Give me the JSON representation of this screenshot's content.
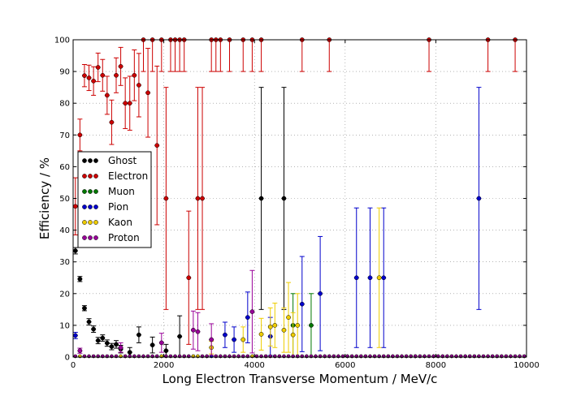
{
  "chart_data": {
    "type": "scatter",
    "title": "",
    "xlabel": "Long Electron Transverse Momentum / MeV/c",
    "ylabel": "Efficiency / %",
    "xlim": [
      0,
      10000
    ],
    "ylim": [
      0,
      100
    ],
    "xticks": [
      "0",
      "2000",
      "4000",
      "6000",
      "8000",
      "10000"
    ],
    "yticks": [
      "0",
      "10",
      "20",
      "30",
      "40",
      "50",
      "60",
      "70",
      "80",
      "90",
      "100"
    ],
    "grid": true,
    "legend_position": "left",
    "series": [
      {
        "name": "Ghost",
        "color": "#000000",
        "points": [
          {
            "x": 50,
            "y": 33.5,
            "err": 1.0
          },
          {
            "x": 150,
            "y": 24.6,
            "err": 0.8
          },
          {
            "x": 250,
            "y": 15.4,
            "err": 0.8
          },
          {
            "x": 350,
            "y": 11.1,
            "err": 1.0
          },
          {
            "x": 450,
            "y": 8.8,
            "err": 1.0
          },
          {
            "x": 550,
            "y": 5.2,
            "err": 1.0
          },
          {
            "x": 650,
            "y": 6.0,
            "err": 1.0
          },
          {
            "x": 750,
            "y": 4.4,
            "err": 1.0
          },
          {
            "x": 850,
            "y": 3.3,
            "err": 1.0
          },
          {
            "x": 950,
            "y": 4.0,
            "err": 1.2
          },
          {
            "x": 1050,
            "y": 2.5,
            "err": 1.2
          },
          {
            "x": 1250,
            "y": 1.5,
            "err": 1.5
          },
          {
            "x": 1450,
            "y": 7.0,
            "err": 2.5
          },
          {
            "x": 1750,
            "y": 3.8,
            "err": 2.5
          },
          {
            "x": 2050,
            "y": 2.0,
            "err": 2.0
          },
          {
            "x": 2350,
            "y": 6.5,
            "err": 6.5
          },
          {
            "x": 4150,
            "y": 50,
            "err": 35
          },
          {
            "x": 4650,
            "y": 50,
            "err": 35
          }
        ]
      },
      {
        "name": "Electron",
        "color": "#cc0000",
        "points": [
          {
            "x": 50,
            "y": 47.5,
            "err": 9
          },
          {
            "x": 150,
            "y": 70,
            "err": 5
          },
          {
            "x": 250,
            "y": 88.7,
            "err": 3.5
          },
          {
            "x": 350,
            "y": 88.0,
            "err": 4
          },
          {
            "x": 450,
            "y": 87.0,
            "err": 4.5
          },
          {
            "x": 550,
            "y": 91.3,
            "err": 4.5
          },
          {
            "x": 650,
            "y": 88.8,
            "err": 5
          },
          {
            "x": 750,
            "y": 82.5,
            "err": 6
          },
          {
            "x": 850,
            "y": 74.0,
            "err": 7
          },
          {
            "x": 950,
            "y": 88.8,
            "err": 5.5
          },
          {
            "x": 1050,
            "y": 91.6,
            "err": 6
          },
          {
            "x": 1150,
            "y": 80.0,
            "err": 8
          },
          {
            "x": 1250,
            "y": 80.0,
            "err": 8.5
          },
          {
            "x": 1350,
            "y": 88.8,
            "err": 8
          },
          {
            "x": 1450,
            "y": 85.7,
            "err": 10
          },
          {
            "x": 1550,
            "y": 100,
            "err": 10
          },
          {
            "x": 1650,
            "y": 83.3,
            "err": 14
          },
          {
            "x": 1750,
            "y": 100,
            "err": 10
          },
          {
            "x": 1850,
            "y": 66.7,
            "err": 25
          },
          {
            "x": 1950,
            "y": 100,
            "err": 10
          },
          {
            "x": 2050,
            "y": 50,
            "err": 35
          },
          {
            "x": 2150,
            "y": 100,
            "err": 10
          },
          {
            "x": 2250,
            "y": 100,
            "err": 10
          },
          {
            "x": 2350,
            "y": 100,
            "err": 10
          },
          {
            "x": 2450,
            "y": 100,
            "err": 10
          },
          {
            "x": 2550,
            "y": 25,
            "err": 21
          },
          {
            "x": 2750,
            "y": 50,
            "err": 35
          },
          {
            "x": 2850,
            "y": 50,
            "err": 35
          },
          {
            "x": 3050,
            "y": 100,
            "err": 10
          },
          {
            "x": 3150,
            "y": 100,
            "err": 10
          },
          {
            "x": 3250,
            "y": 100,
            "err": 10
          },
          {
            "x": 3450,
            "y": 100,
            "err": 10
          },
          {
            "x": 3750,
            "y": 100,
            "err": 10
          },
          {
            "x": 3950,
            "y": 100,
            "err": 10
          },
          {
            "x": 4150,
            "y": 100,
            "err": 10
          },
          {
            "x": 5050,
            "y": 100,
            "err": 10
          },
          {
            "x": 5650,
            "y": 100,
            "err": 10
          },
          {
            "x": 7850,
            "y": 100,
            "err": 10
          },
          {
            "x": 9150,
            "y": 100,
            "err": 10
          },
          {
            "x": 9750,
            "y": 100,
            "err": 10
          }
        ]
      },
      {
        "name": "Muon",
        "color": "#007700",
        "points": [
          {
            "x": 4850,
            "y": 10,
            "err": 10
          },
          {
            "x": 5250,
            "y": 10,
            "err": 10
          }
        ]
      },
      {
        "name": "Pion",
        "color": "#0000cc",
        "points": [
          {
            "x": 50,
            "y": 6.8,
            "err": 1.0
          },
          {
            "x": 3350,
            "y": 7.0,
            "err": 4
          },
          {
            "x": 3550,
            "y": 5.5,
            "err": 4
          },
          {
            "x": 3850,
            "y": 12.5,
            "err": 8
          },
          {
            "x": 4350,
            "y": 6.5,
            "err": 6
          },
          {
            "x": 5050,
            "y": 16.7,
            "err": 15
          },
          {
            "x": 5450,
            "y": 20,
            "err": 18
          },
          {
            "x": 6250,
            "y": 25,
            "err": 22
          },
          {
            "x": 6550,
            "y": 25,
            "err": 22
          },
          {
            "x": 6850,
            "y": 25,
            "err": 22
          },
          {
            "x": 8950,
            "y": 50,
            "err": 35
          }
        ]
      },
      {
        "name": "Kaon",
        "color": "#eecc00",
        "points": [
          {
            "x": 3050,
            "y": 3.0,
            "err": 2
          },
          {
            "x": 3750,
            "y": 5.5,
            "err": 4
          },
          {
            "x": 4150,
            "y": 7.2,
            "err": 5
          },
          {
            "x": 4350,
            "y": 9.5,
            "err": 6
          },
          {
            "x": 4450,
            "y": 10.0,
            "err": 7
          },
          {
            "x": 4650,
            "y": 8.5,
            "err": 7
          },
          {
            "x": 4750,
            "y": 12.5,
            "err": 11
          },
          {
            "x": 4850,
            "y": 7.0,
            "err": 7
          },
          {
            "x": 4950,
            "y": 10.0,
            "err": 10
          },
          {
            "x": 6750,
            "y": 25,
            "err": 22
          }
        ]
      },
      {
        "name": "Proton",
        "color": "#990099",
        "points": [
          {
            "x": 150,
            "y": 2.0,
            "err": 0.8
          },
          {
            "x": 1050,
            "y": 3.0,
            "err": 1.5
          },
          {
            "x": 1950,
            "y": 4.5,
            "err": 3
          },
          {
            "x": 2650,
            "y": 8.5,
            "err": 6
          },
          {
            "x": 2750,
            "y": 8.0,
            "err": 6
          },
          {
            "x": 3050,
            "y": 5.5,
            "err": 5
          },
          {
            "x": 3950,
            "y": 14.3,
            "err": 13
          }
        ]
      }
    ]
  }
}
